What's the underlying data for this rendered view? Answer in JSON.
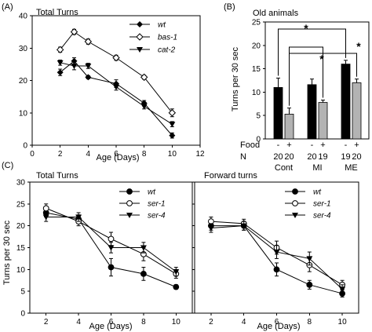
{
  "chart_data": [
    {
      "id": "A",
      "panel_label": "(A)",
      "type": "line",
      "title": "Total Turns",
      "xlabel": "Age (Days)",
      "ylabel": "",
      "xlim": [
        0,
        12
      ],
      "ylim": [
        0,
        40
      ],
      "xticks": [
        0,
        2,
        4,
        6,
        8,
        10,
        12
      ],
      "yticks": [
        0,
        10,
        20,
        30,
        40
      ],
      "legend_position": "top-right",
      "series": [
        {
          "name": "wt",
          "marker": "filled-diamond",
          "x": [
            2,
            3,
            4,
            6,
            8,
            10
          ],
          "y": [
            22.5,
            26,
            21,
            19,
            13,
            3
          ],
          "err": [
            1,
            1,
            0.5,
            1.2,
            0.8,
            0.8
          ]
        },
        {
          "name": "bas-1",
          "marker": "open-diamond",
          "x": [
            2,
            3,
            4,
            6,
            8,
            10
          ],
          "y": [
            29.5,
            35,
            32,
            27,
            21,
            10
          ],
          "err": [
            0.8,
            0.8,
            0.8,
            0.8,
            0.6,
            1.2
          ]
        },
        {
          "name": "cat-2",
          "marker": "filled-triangle-down",
          "x": [
            2,
            3,
            4,
            6,
            8,
            10
          ],
          "y": [
            25.5,
            24.5,
            24.5,
            18,
            12,
            6.5
          ],
          "err": [
            0.8,
            1.2,
            0.8,
            1,
            0.8,
            0.8
          ]
        }
      ]
    },
    {
      "id": "B",
      "panel_label": "(B)",
      "type": "bar",
      "title": "Old animals",
      "ylabel": "Turns per 30 sec",
      "ylim": [
        0,
        25
      ],
      "yticks": [
        0,
        5,
        10,
        15,
        20,
        25
      ],
      "row_labels": {
        "food": "Food",
        "n": "N"
      },
      "groups": [
        {
          "label": "Cont",
          "food": [
            "-",
            "+"
          ],
          "n": [
            "20",
            "20"
          ],
          "values": [
            11,
            5.3
          ],
          "err": [
            2,
            1.3
          ]
        },
        {
          "label": "MI",
          "food": [
            "-",
            "+"
          ],
          "n": [
            "20",
            "19"
          ],
          "values": [
            11.6,
            7.8
          ],
          "err": [
            1.2,
            0.5
          ]
        },
        {
          "label": "ME",
          "food": [
            "-",
            "+"
          ],
          "n": [
            "19",
            "20"
          ],
          "values": [
            16,
            12
          ],
          "err": [
            0.8,
            0.8
          ]
        }
      ],
      "bar_colors": [
        "#000000",
        "#b3b3b3"
      ],
      "significance": [
        {
          "from": "Cont-",
          "to": "ME-",
          "label": "*"
        },
        {
          "from": "Cont+",
          "to": "MI+",
          "label": "*"
        },
        {
          "from": "Cont+",
          "to": "ME+",
          "label": "*"
        }
      ]
    },
    {
      "id": "C1",
      "panel_label": "(C)",
      "type": "line",
      "title": "Total Turns",
      "xlabel": "Age (Days)",
      "ylabel": "Turns per 30 sec",
      "xlim": [
        1,
        11
      ],
      "ylim": [
        0,
        30
      ],
      "xticks": [
        2,
        4,
        6,
        8,
        10
      ],
      "yticks": [
        0,
        5,
        10,
        15,
        20,
        25,
        30
      ],
      "legend_position": "top-right",
      "series": [
        {
          "name": "wt",
          "marker": "filled-circle",
          "x": [
            2,
            4,
            6,
            8,
            10
          ],
          "y": [
            23,
            21.5,
            10.5,
            9,
            6
          ],
          "err": [
            1,
            1,
            2,
            1.5,
            0.5
          ]
        },
        {
          "name": "ser-1",
          "marker": "open-circle",
          "x": [
            2,
            4,
            6,
            8,
            10
          ],
          "y": [
            24,
            21,
            17,
            13.5,
            9
          ],
          "err": [
            1,
            1,
            1.5,
            1.5,
            1
          ]
        },
        {
          "name": "ser-4",
          "marker": "filled-triangle-down",
          "x": [
            2,
            4,
            6,
            8,
            10
          ],
          "y": [
            22,
            22,
            15,
            15,
            9.5
          ],
          "err": [
            1,
            1,
            1.2,
            1.2,
            1
          ]
        }
      ]
    },
    {
      "id": "C2",
      "panel_label": "",
      "type": "line",
      "title": "Forward turns",
      "xlabel": "Age (Days)",
      "ylabel": "",
      "xlim": [
        1,
        11
      ],
      "ylim": [
        0,
        30
      ],
      "xticks": [
        2,
        4,
        6,
        8,
        10
      ],
      "yticks": [],
      "legend_position": "top-right",
      "series": [
        {
          "name": "wt",
          "marker": "filled-circle",
          "x": [
            2,
            4,
            6,
            8,
            10
          ],
          "y": [
            20,
            20,
            10,
            6.5,
            4.5
          ],
          "err": [
            1,
            1,
            1.5,
            1,
            0.8
          ]
        },
        {
          "name": "ser-1",
          "marker": "open-circle",
          "x": [
            2,
            4,
            6,
            8,
            10
          ],
          "y": [
            21,
            20.5,
            15,
            11,
            6.5
          ],
          "err": [
            1,
            1,
            1.5,
            1.5,
            1
          ]
        },
        {
          "name": "ser-4",
          "marker": "filled-triangle-down",
          "x": [
            2,
            4,
            6,
            8,
            10
          ],
          "y": [
            19.5,
            20,
            14,
            12.5,
            5.5
          ],
          "err": [
            1,
            1,
            1.5,
            1.5,
            1
          ]
        }
      ]
    }
  ]
}
